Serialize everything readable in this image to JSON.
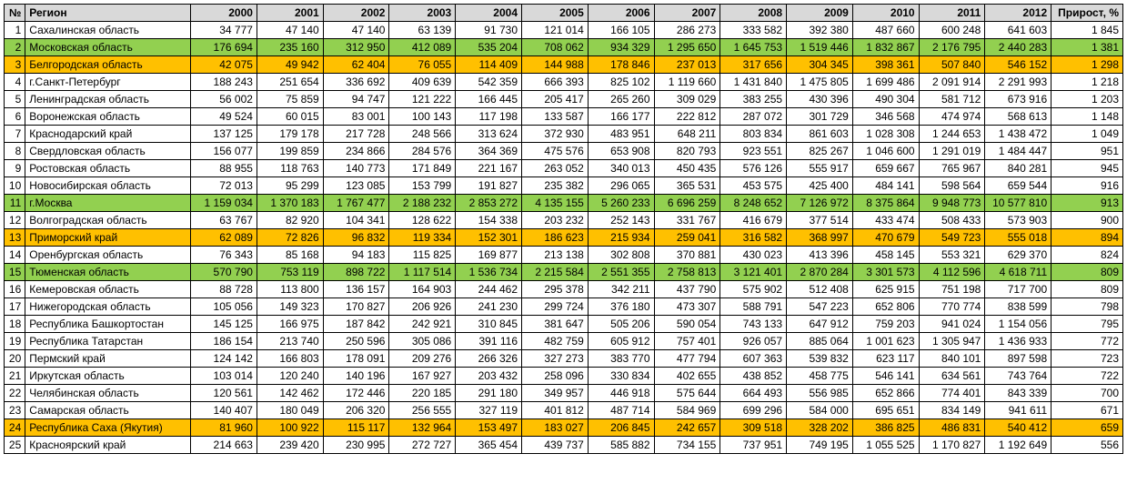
{
  "headers": {
    "num": "№",
    "region": "Регион",
    "years": [
      "2000",
      "2001",
      "2002",
      "2003",
      "2004",
      "2005",
      "2006",
      "2007",
      "2008",
      "2009",
      "2010",
      "2011",
      "2012"
    ],
    "growth": "Прирост, %"
  },
  "styling": {
    "header_bg": "#d9d9d9",
    "border_color": "#000000",
    "highlight_green": "#92d050",
    "highlight_orange": "#ffc000",
    "font_size_pt": 9,
    "font_family": "Arial"
  },
  "rows": [
    {
      "n": 1,
      "region": "Сахалинская область",
      "hl": null,
      "v": [
        "34 777",
        "47 140",
        "47 140",
        "63 139",
        "91 730",
        "121 014",
        "166 105",
        "286 273",
        "333 582",
        "392 380",
        "487 660",
        "600 248",
        "641 603"
      ],
      "g": "1 845"
    },
    {
      "n": 2,
      "region": "Московская область",
      "hl": "green",
      "v": [
        "176 694",
        "235 160",
        "312 950",
        "412 089",
        "535 204",
        "708 062",
        "934 329",
        "1 295 650",
        "1 645 753",
        "1 519 446",
        "1 832 867",
        "2 176 795",
        "2 440 283"
      ],
      "g": "1 381"
    },
    {
      "n": 3,
      "region": "Белгородская область",
      "hl": "orange",
      "v": [
        "42 075",
        "49 942",
        "62 404",
        "76 055",
        "114 409",
        "144 988",
        "178 846",
        "237 013",
        "317 656",
        "304 345",
        "398 361",
        "507 840",
        "546 152"
      ],
      "g": "1 298"
    },
    {
      "n": 4,
      "region": "г.Санкт-Петербург",
      "hl": null,
      "v": [
        "188 243",
        "251 654",
        "336 692",
        "409 639",
        "542 359",
        "666 393",
        "825 102",
        "1 119 660",
        "1 431 840",
        "1 475 805",
        "1 699 486",
        "2 091 914",
        "2 291 993"
      ],
      "g": "1 218"
    },
    {
      "n": 5,
      "region": "Ленинградская область",
      "hl": null,
      "v": [
        "56 002",
        "75 859",
        "94 747",
        "121 222",
        "166 445",
        "205 417",
        "265 260",
        "309 029",
        "383 255",
        "430 396",
        "490 304",
        "581 712",
        "673 916"
      ],
      "g": "1 203"
    },
    {
      "n": 6,
      "region": "Воронежская область",
      "hl": null,
      "v": [
        "49 524",
        "60 015",
        "83 001",
        "100 143",
        "117 198",
        "133 587",
        "166 177",
        "222 812",
        "287 072",
        "301 729",
        "346 568",
        "474 974",
        "568 613"
      ],
      "g": "1 148"
    },
    {
      "n": 7,
      "region": "Краснодарский край",
      "hl": null,
      "v": [
        "137 125",
        "179 178",
        "217 728",
        "248 566",
        "313 624",
        "372 930",
        "483 951",
        "648 211",
        "803 834",
        "861 603",
        "1 028 308",
        "1 244 653",
        "1 438 472"
      ],
      "g": "1 049"
    },
    {
      "n": 8,
      "region": "Свердловская область",
      "hl": null,
      "v": [
        "156 077",
        "199 859",
        "234 866",
        "284 576",
        "364 369",
        "475 576",
        "653 908",
        "820 793",
        "923 551",
        "825 267",
        "1 046 600",
        "1 291 019",
        "1 484 447"
      ],
      "g": "951"
    },
    {
      "n": 9,
      "region": "Ростовская область",
      "hl": null,
      "v": [
        "88 955",
        "118 763",
        "140 773",
        "171 849",
        "221 167",
        "263 052",
        "340 013",
        "450 435",
        "576 126",
        "555 917",
        "659 667",
        "765 967",
        "840 281"
      ],
      "g": "945"
    },
    {
      "n": 10,
      "region": "Новосибирская область",
      "hl": null,
      "v": [
        "72 013",
        "95 299",
        "123 085",
        "153 799",
        "191 827",
        "235 382",
        "296 065",
        "365 531",
        "453 575",
        "425 400",
        "484 141",
        "598 564",
        "659 544"
      ],
      "g": "916"
    },
    {
      "n": 11,
      "region": "г.Москва",
      "hl": "green",
      "v": [
        "1 159 034",
        "1 370 183",
        "1 767 477",
        "2 188 232",
        "2 853 272",
        "4 135 155",
        "5 260 233",
        "6 696 259",
        "8 248 652",
        "7 126 972",
        "8 375 864",
        "9 948 773",
        "10 577 810"
      ],
      "g": "913"
    },
    {
      "n": 12,
      "region": "Волгоградская область",
      "hl": null,
      "v": [
        "63 767",
        "82 920",
        "104 341",
        "128 622",
        "154 338",
        "203 232",
        "252 143",
        "331 767",
        "416 679",
        "377 514",
        "433 474",
        "508 433",
        "573 903"
      ],
      "g": "900"
    },
    {
      "n": 13,
      "region": "Приморский край",
      "hl": "orange",
      "v": [
        "62 089",
        "72 826",
        "96 832",
        "119 334",
        "152 301",
        "186 623",
        "215 934",
        "259 041",
        "316 582",
        "368 997",
        "470 679",
        "549 723",
        "555 018"
      ],
      "g": "894"
    },
    {
      "n": 14,
      "region": "Оренбургская область",
      "hl": null,
      "v": [
        "76 343",
        "85 168",
        "94 183",
        "115 825",
        "169 877",
        "213 138",
        "302 808",
        "370 881",
        "430 023",
        "413 396",
        "458 145",
        "553 321",
        "629 370"
      ],
      "g": "824"
    },
    {
      "n": 15,
      "region": "Тюменская область",
      "hl": "green",
      "v": [
        "570 790",
        "753 119",
        "898 722",
        "1 117 514",
        "1 536 734",
        "2 215 584",
        "2 551 355",
        "2 758 813",
        "3 121 401",
        "2 870 284",
        "3 301 573",
        "4 112 596",
        "4 618 711"
      ],
      "g": "809"
    },
    {
      "n": 16,
      "region": "Кемеровская область",
      "hl": null,
      "v": [
        "88 728",
        "113 800",
        "136 157",
        "164 903",
        "244 462",
        "295 378",
        "342 211",
        "437 790",
        "575 902",
        "512 408",
        "625 915",
        "751 198",
        "717 700"
      ],
      "g": "809"
    },
    {
      "n": 17,
      "region": "Нижегородская область",
      "hl": null,
      "v": [
        "105 056",
        "149 323",
        "170 827",
        "206 926",
        "241 230",
        "299 724",
        "376 180",
        "473 307",
        "588 791",
        "547 223",
        "652 806",
        "770 774",
        "838 599"
      ],
      "g": "798"
    },
    {
      "n": 18,
      "region": "Республика Башкортостан",
      "hl": null,
      "v": [
        "145 125",
        "166 975",
        "187 842",
        "242 921",
        "310 845",
        "381 647",
        "505 206",
        "590 054",
        "743 133",
        "647 912",
        "759 203",
        "941 024",
        "1 154 056"
      ],
      "g": "795"
    },
    {
      "n": 19,
      "region": "Республика Татарстан",
      "hl": null,
      "v": [
        "186 154",
        "213 740",
        "250 596",
        "305 086",
        "391 116",
        "482 759",
        "605 912",
        "757 401",
        "926 057",
        "885 064",
        "1 001 623",
        "1 305 947",
        "1 436 933"
      ],
      "g": "772"
    },
    {
      "n": 20,
      "region": "Пермский край",
      "hl": null,
      "v": [
        "124 142",
        "166 803",
        "178 091",
        "209 276",
        "266 326",
        "327 273",
        "383 770",
        "477 794",
        "607 363",
        "539 832",
        "623 117",
        "840 101",
        "897 598"
      ],
      "g": "723"
    },
    {
      "n": 21,
      "region": "Иркутская область",
      "hl": null,
      "v": [
        "103 014",
        "120 240",
        "140 196",
        "167 927",
        "203 432",
        "258 096",
        "330 834",
        "402 655",
        "438 852",
        "458 775",
        "546 141",
        "634 561",
        "743 764"
      ],
      "g": "722"
    },
    {
      "n": 22,
      "region": "Челябинская область",
      "hl": null,
      "v": [
        "120 561",
        "142 462",
        "172 446",
        "220 185",
        "291 180",
        "349 957",
        "446 918",
        "575 644",
        "664 493",
        "556 985",
        "652 866",
        "774 401",
        "843 339"
      ],
      "g": "700"
    },
    {
      "n": 23,
      "region": "Самарская область",
      "hl": null,
      "v": [
        "140 407",
        "180 049",
        "206 320",
        "256 555",
        "327 119",
        "401 812",
        "487 714",
        "584 969",
        "699 296",
        "584 000",
        "695 651",
        "834 149",
        "941 611"
      ],
      "g": "671"
    },
    {
      "n": 24,
      "region": "Республика Саха (Якутия)",
      "hl": "orange",
      "v": [
        "81 960",
        "100 922",
        "115 117",
        "132 964",
        "153 497",
        "183 027",
        "206 845",
        "242 657",
        "309 518",
        "328 202",
        "386 825",
        "486 831",
        "540 412"
      ],
      "g": "659"
    },
    {
      "n": 25,
      "region": "Красноярский край",
      "hl": null,
      "v": [
        "214 663",
        "239 420",
        "230 995",
        "272 727",
        "365 454",
        "439 737",
        "585 882",
        "734 155",
        "737 951",
        "749 195",
        "1 055 525",
        "1 170 827",
        "1 192 649"
      ],
      "g": "556"
    }
  ]
}
